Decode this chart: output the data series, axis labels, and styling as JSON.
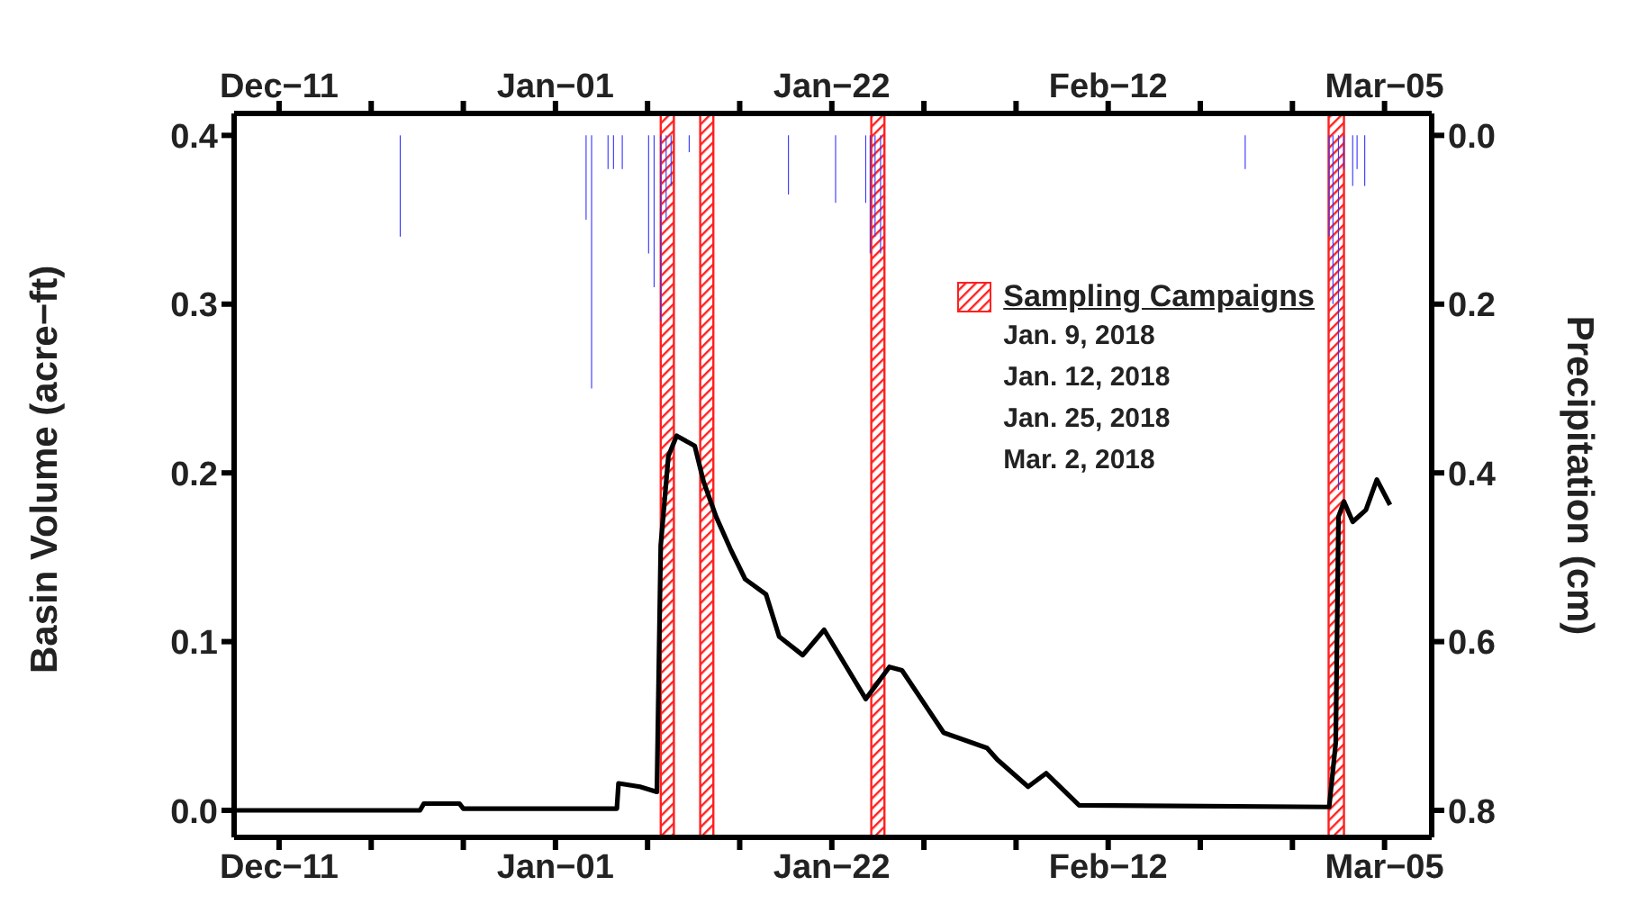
{
  "chart_data": {
    "type": "line",
    "ylabel": "Basin Volume (acre−ft)",
    "y2label": "Precipitation (cm)",
    "legend_title": "Sampling Campaigns",
    "annotations": [
      "Jan. 9, 2018",
      "Jan. 12, 2018",
      "Jan. 25, 2018",
      "Mar. 2, 2018"
    ],
    "xlim": [
      "2017-12-07T14:00",
      "2018-03-08T14:00"
    ],
    "xticks": [
      {
        "value": "2017-12-11",
        "label": "Dec−11"
      },
      {
        "value": "2017-12-18",
        "label": null
      },
      {
        "value": "2017-12-25",
        "label": null
      },
      {
        "value": "2018-01-01",
        "label": "Jan−01"
      },
      {
        "value": "2018-01-08",
        "label": null
      },
      {
        "value": "2018-01-15",
        "label": null
      },
      {
        "value": "2018-01-22",
        "label": "Jan−22"
      },
      {
        "value": "2018-01-29",
        "label": null
      },
      {
        "value": "2018-02-05",
        "label": null
      },
      {
        "value": "2018-02-12",
        "label": "Feb−12"
      },
      {
        "value": "2018-02-19",
        "label": null
      },
      {
        "value": "2018-02-26",
        "label": null
      },
      {
        "value": "2018-03-05",
        "label": "Mar−05"
      }
    ],
    "x2lim": [
      "2017-12-07T14:00",
      "2018-03-08T14:00"
    ],
    "x2ticks": [
      {
        "value": "2017-12-11",
        "label": "Dec−11"
      },
      {
        "value": "2017-12-18",
        "label": null
      },
      {
        "value": "2017-12-25",
        "label": null
      },
      {
        "value": "2018-01-01",
        "label": "Jan−01"
      },
      {
        "value": "2018-01-08",
        "label": null
      },
      {
        "value": "2018-01-15",
        "label": null
      },
      {
        "value": "2018-01-22",
        "label": "Jan−22"
      },
      {
        "value": "2018-01-29",
        "label": null
      },
      {
        "value": "2018-02-05",
        "label": null
      },
      {
        "value": "2018-02-12",
        "label": "Feb−12"
      },
      {
        "value": "2018-02-19",
        "label": null
      },
      {
        "value": "2018-02-26",
        "label": null
      },
      {
        "value": "2018-03-05",
        "label": "Mar−05"
      }
    ],
    "ylim": [
      -0.016,
      0.413
    ],
    "yticks": [
      {
        "value": 0,
        "label": "0.0"
      },
      {
        "value": 0.1,
        "label": "0.1"
      },
      {
        "value": 0.2,
        "label": "0.2"
      },
      {
        "value": 0.3,
        "label": "0.3"
      },
      {
        "value": 0.4,
        "label": "0.4"
      }
    ],
    "y2lim": [
      0.832,
      -0.026
    ],
    "y2ticks": [
      {
        "value": 0,
        "label": "0.0"
      },
      {
        "value": 0.2,
        "label": "0.2"
      },
      {
        "value": 0.4,
        "label": "0.4"
      },
      {
        "value": 0.6,
        "label": "0.6"
      },
      {
        "value": 0.8,
        "label": "0.8"
      }
    ],
    "series": [
      {
        "type": "bar",
        "axis": "y2",
        "color": "#3333ff",
        "x": [
          "2017-12-20T05:00",
          "2018-01-03T08:00",
          "2018-01-03T18:00",
          "2018-01-05T00:00",
          "2018-01-05T10:00",
          "2018-01-06T02:00",
          "2018-01-08T02:00",
          "2018-01-08T12:00",
          "2018-01-09T00:00",
          "2018-01-09T10:00",
          "2018-01-09T19:00",
          "2018-01-11T04:00",
          "2018-01-18T17:00",
          "2018-01-22T07:00",
          "2018-01-24T14:00",
          "2018-01-24T22:00",
          "2018-01-25T07:00",
          "2018-01-25T17:00",
          "2018-02-22T10:00",
          "2018-02-28T19:00",
          "2018-03-01T02:00",
          "2018-03-01T12:00",
          "2018-03-01T22:00",
          "2018-03-02T14:00",
          "2018-03-02T22:00",
          "2018-03-03T12:00"
        ],
        "values": [
          0.12,
          0.1,
          0.3,
          0.04,
          0.04,
          0.04,
          0.14,
          0.18,
          0.22,
          0.1,
          0.06,
          0.02,
          0.07,
          0.08,
          0.08,
          0.14,
          0.12,
          0.14,
          0.04,
          0.12,
          0.2,
          0.42,
          0.04,
          0.06,
          0.04,
          0.06
        ]
      },
      {
        "color": "#000000",
        "x": [
          "2017-12-07T14:00",
          "2017-12-21T17:00",
          "2017-12-22T00:00",
          "2017-12-24T17:00",
          "2017-12-25T00:00",
          "2018-01-05T16:00",
          "2018-01-05T19:00",
          "2018-01-07T10:00",
          "2018-01-08T17:00",
          "2018-01-09T00:00",
          "2018-01-09T14:00",
          "2018-01-10T05:00",
          "2018-01-11T14:00",
          "2018-01-12T06:00",
          "2018-01-13T05:00",
          "2018-01-14T07:00",
          "2018-01-15T10:00",
          "2018-01-17T00:00",
          "2018-01-18T00:00",
          "2018-01-19T19:00",
          "2018-01-21T10:00",
          "2018-01-24T14:00",
          "2018-01-26T09:00",
          "2018-01-27T08:00",
          "2018-01-30T12:00",
          "2018-02-02T19:00",
          "2018-02-03T14:00",
          "2018-02-05T22:00",
          "2018-02-07T07:00",
          "2018-02-09T19:00",
          "2018-02-28T19:00",
          "2018-03-01T07:00",
          "2018-03-01T12:00",
          "2018-03-01T22:00",
          "2018-03-02T14:00",
          "2018-03-03T14:00",
          "2018-03-04T10:00",
          "2018-03-05T10:00"
        ],
        "values": [
          0,
          0,
          0.004,
          0.004,
          0.001,
          0.001,
          0.016,
          0.014,
          0.011,
          0.157,
          0.21,
          0.222,
          0.216,
          0.195,
          0.174,
          0.155,
          0.137,
          0.128,
          0.103,
          0.092,
          0.107,
          0.066,
          0.085,
          0.083,
          0.046,
          0.037,
          0.03,
          0.014,
          0.022,
          0.003,
          0.002,
          0.04,
          0.174,
          0.183,
          0.171,
          0.178,
          0.196,
          0.181
        ]
      }
    ],
    "bands": [
      {
        "axis": "x",
        "from": "2018-01-09",
        "to": "2018-01-10",
        "color": "#ff2020"
      },
      {
        "axis": "x",
        "from": "2018-01-12",
        "to": "2018-01-13",
        "color": "#ff2020"
      },
      {
        "axis": "x",
        "from": "2018-01-25",
        "to": "2018-01-26",
        "color": "#ff2020"
      },
      {
        "axis": "x",
        "from": "2018-02-28T18:00",
        "to": "2018-03-01T22:00",
        "color": "#ff2020"
      }
    ]
  }
}
